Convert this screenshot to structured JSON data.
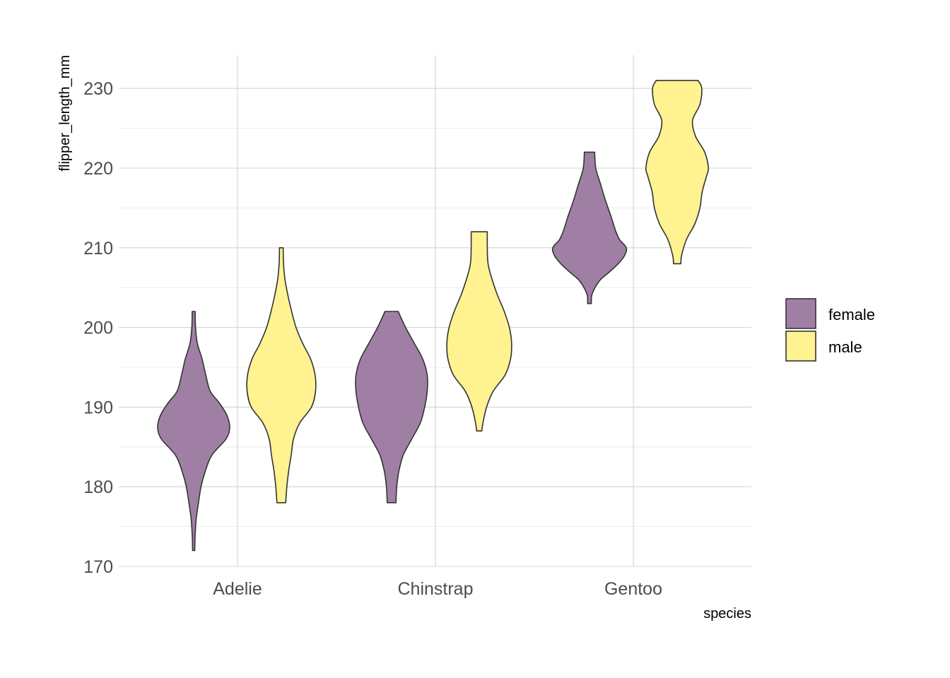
{
  "chart_data": {
    "type": "violin",
    "title": "",
    "xlabel": "species",
    "ylabel": "flipper_length_mm",
    "categories": [
      "Adelie",
      "Chinstrap",
      "Gentoo"
    ],
    "ylim": [
      168,
      234
    ],
    "yticks": [
      170,
      180,
      190,
      200,
      210,
      220,
      230
    ],
    "grid": true,
    "legend": {
      "position": "right",
      "title": ""
    },
    "series": [
      {
        "name": "female",
        "color": "#a07fa5",
        "violins": [
          {
            "category": "Adelie",
            "min": 172,
            "max": 202,
            "profile": [
              [
                172,
                0.03
              ],
              [
                174,
                0.04
              ],
              [
                176,
                0.07
              ],
              [
                178,
                0.13
              ],
              [
                180,
                0.2
              ],
              [
                182,
                0.32
              ],
              [
                184,
                0.5
              ],
              [
                186,
                0.88
              ],
              [
                187.5,
                0.98
              ],
              [
                189,
                0.9
              ],
              [
                190.5,
                0.7
              ],
              [
                192,
                0.45
              ],
              [
                194,
                0.33
              ],
              [
                196,
                0.23
              ],
              [
                198,
                0.1
              ],
              [
                200,
                0.05
              ],
              [
                202,
                0.04
              ]
            ]
          },
          {
            "category": "Chinstrap",
            "min": 178,
            "max": 202,
            "profile": [
              [
                178,
                0.12
              ],
              [
                180,
                0.14
              ],
              [
                182,
                0.2
              ],
              [
                184,
                0.32
              ],
              [
                186,
                0.55
              ],
              [
                188,
                0.78
              ],
              [
                190,
                0.9
              ],
              [
                192,
                0.97
              ],
              [
                194,
                0.97
              ],
              [
                196,
                0.85
              ],
              [
                198,
                0.62
              ],
              [
                200,
                0.38
              ],
              [
                202,
                0.18
              ]
            ]
          },
          {
            "category": "Gentoo",
            "min": 203,
            "max": 222,
            "profile": [
              [
                203,
                0.05
              ],
              [
                204,
                0.06
              ],
              [
                205,
                0.15
              ],
              [
                206,
                0.3
              ],
              [
                207,
                0.55
              ],
              [
                208,
                0.78
              ],
              [
                209,
                0.95
              ],
              [
                210,
                1.0
              ],
              [
                211,
                0.82
              ],
              [
                212,
                0.72
              ],
              [
                214,
                0.58
              ],
              [
                216,
                0.43
              ],
              [
                218,
                0.3
              ],
              [
                220,
                0.17
              ],
              [
                222,
                0.14
              ]
            ]
          }
        ]
      },
      {
        "name": "male",
        "color": "#fff290",
        "violins": [
          {
            "category": "Adelie",
            "min": 178,
            "max": 210,
            "profile": [
              [
                178,
                0.12
              ],
              [
                180,
                0.15
              ],
              [
                182,
                0.2
              ],
              [
                184,
                0.27
              ],
              [
                186,
                0.33
              ],
              [
                188,
                0.5
              ],
              [
                190,
                0.82
              ],
              [
                192,
                0.93
              ],
              [
                194,
                0.92
              ],
              [
                196,
                0.8
              ],
              [
                198,
                0.58
              ],
              [
                200,
                0.4
              ],
              [
                202,
                0.28
              ],
              [
                204,
                0.18
              ],
              [
                206,
                0.1
              ],
              [
                208,
                0.06
              ],
              [
                210,
                0.05
              ]
            ]
          },
          {
            "category": "Chinstrap",
            "min": 187,
            "max": 212,
            "profile": [
              [
                187,
                0.07
              ],
              [
                188,
                0.1
              ],
              [
                190,
                0.2
              ],
              [
                192,
                0.38
              ],
              [
                194,
                0.7
              ],
              [
                196,
                0.85
              ],
              [
                198,
                0.88
              ],
              [
                200,
                0.82
              ],
              [
                202,
                0.68
              ],
              [
                204,
                0.5
              ],
              [
                206,
                0.35
              ],
              [
                208,
                0.24
              ],
              [
                210,
                0.22
              ],
              [
                212,
                0.22
              ]
            ]
          },
          {
            "category": "Gentoo",
            "min": 208,
            "max": 231,
            "profile": [
              [
                208,
                0.1
              ],
              [
                209,
                0.12
              ],
              [
                211,
                0.25
              ],
              [
                213,
                0.48
              ],
              [
                215,
                0.62
              ],
              [
                217,
                0.68
              ],
              [
                219,
                0.8
              ],
              [
                220,
                0.85
              ],
              [
                222,
                0.75
              ],
              [
                224,
                0.5
              ],
              [
                226,
                0.42
              ],
              [
                228,
                0.62
              ],
              [
                230,
                0.67
              ],
              [
                231,
                0.57
              ]
            ]
          }
        ]
      }
    ]
  }
}
